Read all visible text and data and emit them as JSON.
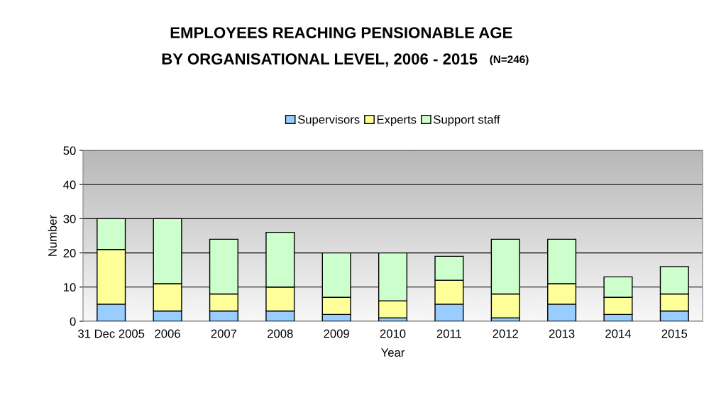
{
  "chart_data": {
    "type": "bar",
    "stacked": true,
    "title": "EMPLOYEES REACHING PENSIONABLE AGE BY ORGANISATIONAL LEVEL, 2006 - 2015",
    "annotations": [
      "(N=246)"
    ],
    "xlabel": "Year",
    "ylabel": "Number",
    "categories": [
      "31 Dec 2005",
      "2006",
      "2007",
      "2008",
      "2009",
      "2010",
      "2011",
      "2012",
      "2013",
      "2014",
      "2015"
    ],
    "series": [
      {
        "name": "Supervisors",
        "color": "#99ccff",
        "values": [
          5,
          3,
          3,
          3,
          2,
          1,
          5,
          1,
          5,
          2,
          3
        ]
      },
      {
        "name": "Experts",
        "color": "#ffff99",
        "values": [
          16,
          8,
          5,
          7,
          5,
          5,
          7,
          7,
          6,
          5,
          5
        ]
      },
      {
        "name": "Support staff",
        "color": "#ccffcc",
        "values": [
          9,
          19,
          16,
          16,
          13,
          14,
          7,
          16,
          13,
          6,
          8
        ]
      }
    ],
    "ylim": [
      0,
      50
    ],
    "yticks": [
      0,
      10,
      20,
      30,
      40,
      50
    ],
    "grid": "y",
    "legend": "top"
  }
}
